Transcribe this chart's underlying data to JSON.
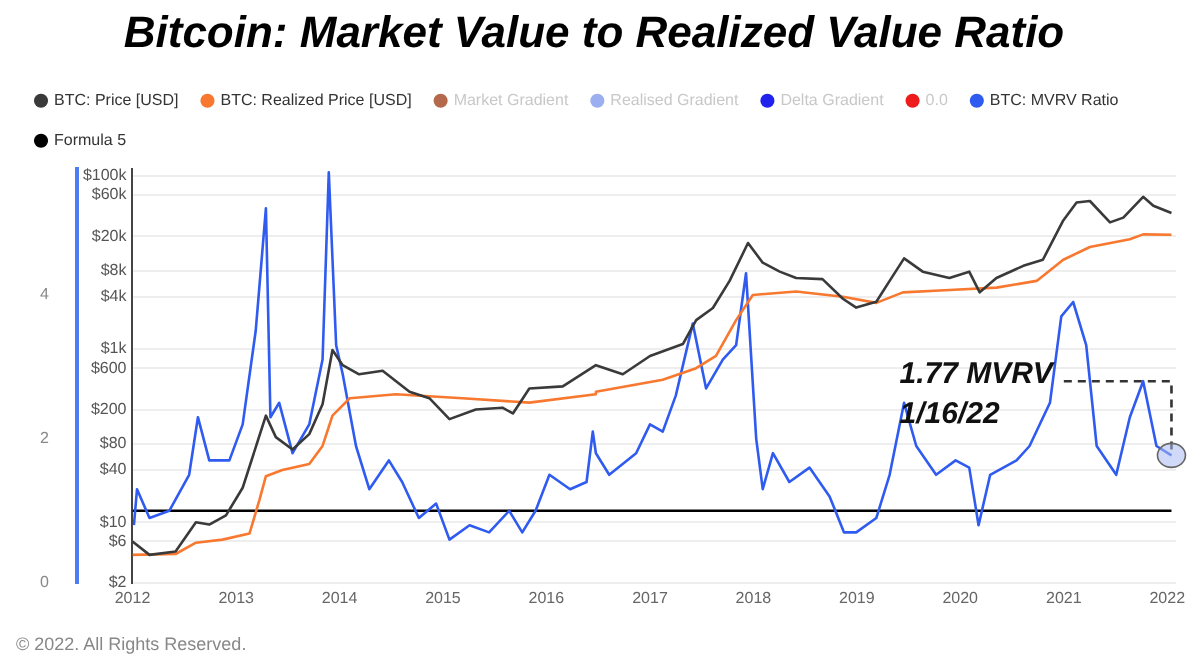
{
  "chart_data": {
    "type": "line",
    "title": "Bitcoin: Market Value to Realized Value Ratio",
    "legend": "top",
    "grid": "y",
    "log": "y2",
    "marker": "none",
    "xlim": [
      "2012-01-01",
      "2022-02-01"
    ],
    "xticks": [
      "2012",
      "2013",
      "2014",
      "2015",
      "2016",
      "2017",
      "2018",
      "2019",
      "2020",
      "2021",
      "2022"
    ],
    "ylim": [
      0,
      5.75
    ],
    "yticks": [
      0,
      2,
      4
    ],
    "y2lim": [
      2,
      120000
    ],
    "y2ticks": [
      {
        "value": 2,
        "label": "$2"
      },
      {
        "value": 6,
        "label": "$6"
      },
      {
        "value": 10,
        "label": "$10"
      },
      {
        "value": 40,
        "label": "$40"
      },
      {
        "value": 80,
        "label": "$80"
      },
      {
        "value": 200,
        "label": "$200"
      },
      {
        "value": 600,
        "label": "$600"
      },
      {
        "value": 1000,
        "label": "$1k"
      },
      {
        "value": 4000,
        "label": "$4k"
      },
      {
        "value": 8000,
        "label": "$8k"
      },
      {
        "value": 20000,
        "label": "$20k"
      },
      {
        "value": 60000,
        "label": "$60k"
      },
      {
        "value": 100000,
        "label": "$100k"
      }
    ],
    "annotations": [
      "1.77 MVRV\n1/16/22",
      "© 2022. All Rights Reserved."
    ],
    "series": [
      {
        "name": "BTC: Price [USD]",
        "color": "#3a3a3a",
        "axis": "y2",
        "x": [
          "2012-01-01",
          "2012-03-01",
          "2012-06-01",
          "2012-08-12",
          "2012-09-28",
          "2012-11-26",
          "2013-01-24",
          "2013-04-16",
          "2013-05-21",
          "2013-07-19",
          "2013-09-16",
          "2013-11-02",
          "2013-12-07",
          "2014-01-12",
          "2014-03-11",
          "2014-06-02",
          "2014-09-05",
          "2014-11-14",
          "2015-01-24",
          "2015-04-27",
          "2015-07-30",
          "2015-09-05",
          "2015-11-02",
          "2016-02-28",
          "2016-06-24",
          "2016-09-27",
          "2017-01-01",
          "2017-04-27",
          "2017-06-13",
          "2017-08-11",
          "2017-10-09",
          "2017-12-13",
          "2018-02-03",
          "2018-04-04",
          "2018-06-01",
          "2018-09-02",
          "2018-11-13",
          "2018-12-30",
          "2019-03-11",
          "2019-04-27",
          "2019-06-17",
          "2019-08-22",
          "2019-11-24",
          "2020-02-02",
          "2020-03-10",
          "2020-05-08",
          "2020-08-11",
          "2020-10-19",
          "2020-12-30",
          "2021-02-15",
          "2021-04-03",
          "2021-06-13",
          "2021-07-30",
          "2021-10-08",
          "2021-11-13",
          "2022-01-16"
        ],
        "values": [
          6,
          4.2,
          4.6,
          10,
          9.4,
          12,
          25,
          170,
          96,
          69,
          104,
          230,
          970,
          650,
          510,
          560,
          320,
          270,
          155,
          200,
          210,
          180,
          350,
          370,
          650,
          510,
          830,
          1140,
          2150,
          2970,
          6100,
          16700,
          9900,
          7800,
          6600,
          6400,
          3800,
          3000,
          3500,
          6100,
          11100,
          7800,
          6600,
          7800,
          4500,
          6600,
          9100,
          10700,
          30400,
          49000,
          51000,
          28900,
          32800,
          57000,
          45000,
          37000
        ]
      },
      {
        "name": "BTC: Realized Price [USD]",
        "color": "#f7782e",
        "axis": "y2",
        "x": [
          "2012-01-01",
          "2012-06-01",
          "2012-08-12",
          "2012-11-14",
          "2013-02-17",
          "2013-03-24",
          "2013-04-16",
          "2013-06-13",
          "2013-09-16",
          "2013-11-02",
          "2013-12-07",
          "2014-02-06",
          "2014-07-19",
          "2015-03-11",
          "2015-11-02",
          "2016-06-24",
          "2016-06-24",
          "2017-02-15",
          "2017-06-13",
          "2017-08-22",
          "2017-11-01",
          "2017-12-30",
          "2018-06-01",
          "2018-11-13",
          "2019-03-11",
          "2019-06-13",
          "2019-11-24",
          "2020-05-08",
          "2020-09-27",
          "2020-12-30",
          "2021-04-03",
          "2021-08-22",
          "2021-10-08",
          "2022-01-16"
        ],
        "values": [
          4.2,
          4.3,
          5.8,
          6.3,
          7.4,
          18,
          34,
          40,
          47,
          76,
          170,
          270,
          300,
          270,
          240,
          300,
          320,
          440,
          600,
          830,
          2150,
          4200,
          4600,
          4000,
          3400,
          4500,
          4800,
          5100,
          6100,
          10700,
          15000,
          18500,
          21000,
          20800
        ]
      },
      {
        "name": "Market Gradient",
        "color": "#b5694c"
      },
      {
        "name": "Realised Gradient",
        "color": "#9aaef0"
      },
      {
        "name": "Delta Gradient",
        "color": "#2222ee"
      },
      {
        "name": "0.0",
        "color": "#ee1c1c"
      },
      {
        "name": "BTC: MVRV Ratio",
        "color": "#2f5bf0",
        "x": [
          "2012-01-06",
          "2012-01-17",
          "2012-03-01",
          "2012-05-10",
          "2012-07-19",
          "2012-08-19",
          "2012-09-28",
          "2012-12-08",
          "2013-01-24",
          "2013-03-11",
          "2013-04-16",
          "2013-05-02",
          "2013-06-02",
          "2013-07-19",
          "2013-09-16",
          "2013-11-02",
          "2013-11-24",
          "2013-12-20",
          "2014-01-12",
          "2014-02-28",
          "2014-04-16",
          "2014-06-24",
          "2014-08-10",
          "2014-10-08",
          "2014-12-08",
          "2015-01-24",
          "2015-04-05",
          "2015-06-13",
          "2015-08-23",
          "2015-10-08",
          "2015-11-24",
          "2016-01-12",
          "2016-03-25",
          "2016-05-22",
          "2016-06-13",
          "2016-06-24",
          "2016-08-10",
          "2016-11-13",
          "2017-01-01",
          "2017-02-15",
          "2017-04-02",
          "2017-06-01",
          "2017-07-18",
          "2017-09-15",
          "2017-11-01",
          "2017-12-06",
          "2018-01-11",
          "2018-02-03",
          "2018-03-11",
          "2018-05-08",
          "2018-07-18",
          "2018-09-27",
          "2018-11-17",
          "2018-12-30",
          "2019-03-11",
          "2019-04-27",
          "2019-06-17",
          "2019-07-30",
          "2019-10-08",
          "2019-12-16",
          "2020-02-02",
          "2020-03-06",
          "2020-04-16",
          "2020-07-18",
          "2020-09-02",
          "2020-11-13",
          "2020-12-23",
          "2021-02-03",
          "2021-03-21",
          "2021-04-27",
          "2021-07-05",
          "2021-08-22",
          "2021-10-08",
          "2021-11-24",
          "2022-01-16"
        ],
        "values": [
          0.8,
          1.3,
          0.9,
          1.0,
          1.5,
          2.3,
          1.7,
          1.7,
          2.2,
          3.5,
          5.2,
          2.3,
          2.5,
          1.8,
          2.2,
          3.1,
          5.7,
          3.3,
          2.9,
          1.9,
          1.3,
          1.7,
          1.4,
          0.9,
          1.1,
          0.6,
          0.8,
          0.7,
          1.0,
          0.7,
          1.0,
          1.5,
          1.3,
          1.4,
          2.1,
          1.8,
          1.5,
          1.8,
          2.2,
          2.1,
          2.6,
          3.6,
          2.7,
          3.1,
          3.3,
          4.3,
          2.0,
          1.3,
          1.8,
          1.4,
          1.6,
          1.2,
          0.7,
          0.7,
          0.9,
          1.5,
          2.5,
          1.9,
          1.5,
          1.7,
          1.6,
          0.8,
          1.5,
          1.7,
          1.9,
          2.5,
          3.7,
          3.9,
          3.3,
          1.9,
          1.5,
          2.3,
          2.8,
          1.9,
          1.77
        ]
      },
      {
        "name": "Formula 5",
        "color": "#000000",
        "x": [
          "2012-01-01",
          "2022-01-16"
        ],
        "values": [
          1,
          1
        ]
      },
      {
        "color": "#333333",
        "line_style": "dashed",
        "x": [
          "2021-01-01",
          "2022-01-16",
          "2022-01-16"
        ],
        "values": [
          2.8,
          2.8,
          1.77
        ]
      }
    ]
  }
}
